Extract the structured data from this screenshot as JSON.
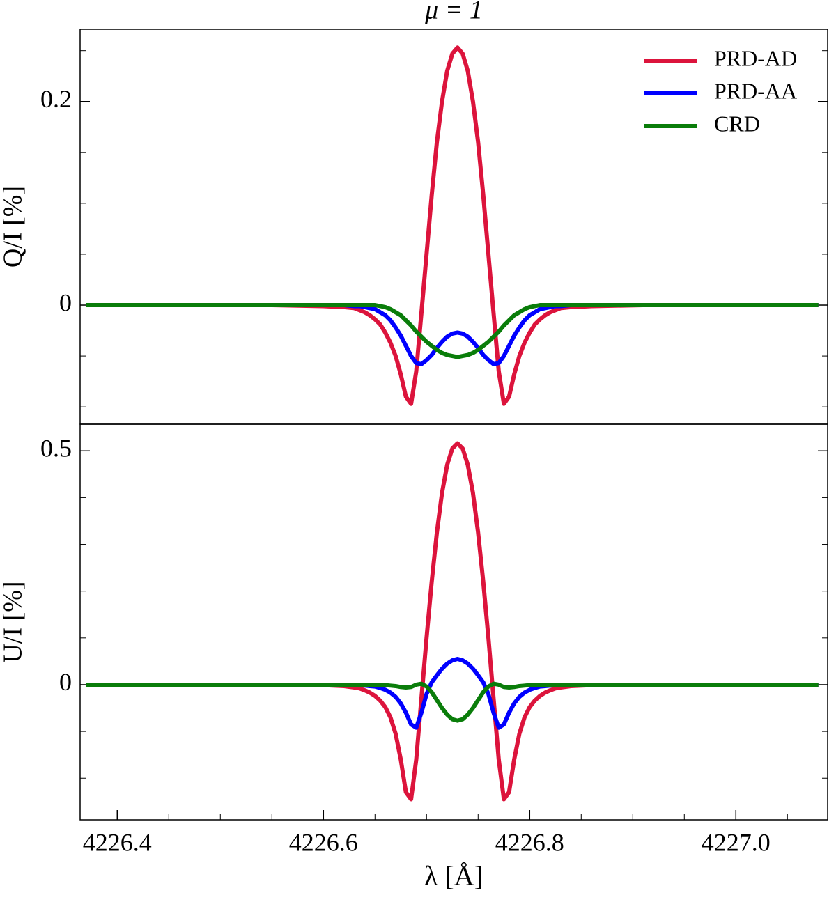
{
  "chart_data": [
    {
      "type": "line",
      "title": "μ = 1",
      "ylabel": "Q/I [%]",
      "legend": "upper right",
      "x": [
        4226.37,
        4226.45,
        4226.5,
        4226.55,
        4226.6,
        4226.62,
        4226.63,
        4226.635,
        4226.64,
        4226.645,
        4226.65,
        4226.655,
        4226.66,
        4226.665,
        4226.67,
        4226.675,
        4226.68,
        4226.685,
        4226.69,
        4226.695,
        4226.7,
        4226.705,
        4226.71,
        4226.715,
        4226.72,
        4226.725,
        4226.73,
        4226.735,
        4226.74,
        4226.745,
        4226.75,
        4226.755,
        4226.76,
        4226.765,
        4226.77,
        4226.775,
        4226.78,
        4226.785,
        4226.79,
        4226.795,
        4226.8,
        4226.805,
        4226.81,
        4226.815,
        4226.82,
        4226.825,
        4226.83,
        4226.84,
        4226.86,
        4226.91,
        4226.96,
        4227.01,
        4227.08
      ],
      "xlim": [
        4226.364,
        4227.089
      ],
      "ylim": [
        -0.117,
        0.271
      ],
      "yticks": [
        0,
        0.2
      ],
      "yminorticks": [
        -0.1,
        -0.05,
        0.05,
        0.1,
        0.15,
        0.25
      ],
      "series": [
        {
          "name": "PRD-AD",
          "color": "#dc143c",
          "values": [
            0,
            0,
            0,
            0,
            -0.001,
            -0.002,
            -0.003,
            -0.005,
            -0.007,
            -0.01,
            -0.014,
            -0.019,
            -0.027,
            -0.037,
            -0.05,
            -0.068,
            -0.09,
            -0.097,
            -0.065,
            -0.008,
            0.05,
            0.108,
            0.16,
            0.2,
            0.23,
            0.247,
            0.253,
            0.247,
            0.23,
            0.2,
            0.16,
            0.108,
            0.05,
            -0.008,
            -0.065,
            -0.097,
            -0.09,
            -0.068,
            -0.05,
            -0.037,
            -0.027,
            -0.019,
            -0.014,
            -0.01,
            -0.007,
            -0.005,
            -0.003,
            -0.002,
            -0.001,
            0,
            0,
            0,
            0
          ]
        },
        {
          "name": "PRD-AA",
          "color": "#0000ff",
          "values": [
            0,
            0,
            0,
            0,
            0,
            0,
            -0.001,
            -0.001,
            -0.002,
            -0.003,
            -0.004,
            -0.007,
            -0.01,
            -0.015,
            -0.022,
            -0.03,
            -0.04,
            -0.05,
            -0.057,
            -0.058,
            -0.054,
            -0.049,
            -0.042,
            -0.036,
            -0.031,
            -0.028,
            -0.027,
            -0.028,
            -0.031,
            -0.036,
            -0.042,
            -0.049,
            -0.054,
            -0.058,
            -0.057,
            -0.05,
            -0.04,
            -0.03,
            -0.022,
            -0.015,
            -0.01,
            -0.007,
            -0.004,
            -0.003,
            -0.002,
            -0.001,
            -0.001,
            0,
            0,
            0,
            0,
            0,
            0
          ]
        },
        {
          "name": "CRD",
          "color": "#0a7d0a",
          "values": [
            0,
            0,
            0,
            0,
            0,
            0,
            0,
            0,
            0,
            0,
            0,
            -0.001,
            -0.002,
            -0.004,
            -0.007,
            -0.01,
            -0.015,
            -0.02,
            -0.026,
            -0.031,
            -0.036,
            -0.04,
            -0.044,
            -0.047,
            -0.049,
            -0.05,
            -0.051,
            -0.05,
            -0.049,
            -0.047,
            -0.044,
            -0.04,
            -0.036,
            -0.031,
            -0.026,
            -0.02,
            -0.015,
            -0.01,
            -0.007,
            -0.004,
            -0.002,
            -0.001,
            0,
            0,
            0,
            0,
            0,
            0,
            0,
            0,
            0,
            0,
            0
          ]
        }
      ]
    },
    {
      "type": "line",
      "ylabel": "U/I [%]",
      "xlabel": "λ [Å]",
      "x": [
        4226.37,
        4226.45,
        4226.5,
        4226.55,
        4226.6,
        4226.62,
        4226.63,
        4226.635,
        4226.64,
        4226.645,
        4226.65,
        4226.655,
        4226.66,
        4226.665,
        4226.67,
        4226.675,
        4226.68,
        4226.685,
        4226.69,
        4226.695,
        4226.7,
        4226.705,
        4226.71,
        4226.715,
        4226.72,
        4226.725,
        4226.73,
        4226.735,
        4226.74,
        4226.745,
        4226.75,
        4226.755,
        4226.76,
        4226.765,
        4226.77,
        4226.775,
        4226.78,
        4226.785,
        4226.79,
        4226.795,
        4226.8,
        4226.805,
        4226.81,
        4226.815,
        4226.82,
        4226.825,
        4226.83,
        4226.84,
        4226.86,
        4226.91,
        4226.96,
        4227.01,
        4227.08
      ],
      "xlim": [
        4226.364,
        4227.089
      ],
      "xticks": [
        4226.4,
        4226.6,
        4226.8,
        {
          "value": 4227,
          "label": "4227.0"
        }
      ],
      "xminorticks": [
        4226.45,
        4226.5,
        4226.55,
        4226.65,
        4226.7,
        4226.75,
        4226.85,
        4226.9,
        4226.95,
        4227.05
      ],
      "ylim": [
        -0.289,
        0.557
      ],
      "yticks": [
        0,
        0.5
      ],
      "yminorticks": [
        -0.2,
        -0.1,
        0.1,
        0.2,
        0.3,
        0.4
      ],
      "series": [
        {
          "name": "PRD-AD",
          "color": "#dc143c",
          "values": [
            0,
            0,
            0,
            0,
            -0.001,
            -0.003,
            -0.006,
            -0.008,
            -0.012,
            -0.017,
            -0.024,
            -0.034,
            -0.048,
            -0.07,
            -0.105,
            -0.16,
            -0.23,
            -0.245,
            -0.16,
            -0.03,
            0.1,
            0.22,
            0.325,
            0.41,
            0.47,
            0.505,
            0.516,
            0.505,
            0.47,
            0.41,
            0.325,
            0.22,
            0.1,
            -0.03,
            -0.16,
            -0.245,
            -0.23,
            -0.16,
            -0.105,
            -0.07,
            -0.048,
            -0.034,
            -0.024,
            -0.017,
            -0.012,
            -0.008,
            -0.006,
            -0.003,
            -0.001,
            0,
            0,
            0,
            0
          ]
        },
        {
          "name": "PRD-AA",
          "color": "#0000ff",
          "values": [
            0,
            0,
            0,
            0,
            0,
            0,
            -0.001,
            -0.001,
            -0.002,
            -0.003,
            -0.004,
            -0.007,
            -0.011,
            -0.017,
            -0.026,
            -0.04,
            -0.06,
            -0.085,
            -0.092,
            -0.06,
            -0.02,
            0.005,
            0.02,
            0.034,
            0.045,
            0.052,
            0.055,
            0.052,
            0.045,
            0.034,
            0.02,
            0.005,
            -0.02,
            -0.06,
            -0.092,
            -0.085,
            -0.06,
            -0.04,
            -0.026,
            -0.017,
            -0.011,
            -0.007,
            -0.004,
            -0.003,
            -0.002,
            -0.001,
            -0.001,
            0,
            0,
            0,
            0,
            0,
            0
          ]
        },
        {
          "name": "CRD",
          "color": "#0a7d0a",
          "values": [
            0,
            0,
            0,
            0,
            0,
            0,
            0,
            0,
            0,
            0,
            0,
            -0.001,
            -0.001,
            -0.002,
            -0.003,
            -0.005,
            -0.006,
            -0.005,
            0,
            0.002,
            -0.004,
            -0.016,
            -0.033,
            -0.05,
            -0.064,
            -0.074,
            -0.077,
            -0.074,
            -0.064,
            -0.05,
            -0.033,
            -0.016,
            -0.004,
            0.002,
            0,
            -0.005,
            -0.006,
            -0.005,
            -0.003,
            -0.002,
            -0.001,
            -0.001,
            0,
            0,
            0,
            0,
            0,
            0,
            0,
            0,
            0,
            0,
            0
          ]
        }
      ]
    }
  ]
}
